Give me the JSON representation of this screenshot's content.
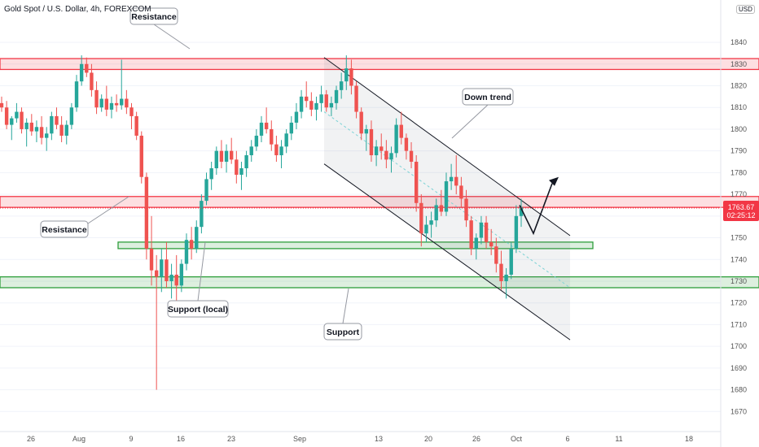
{
  "header": {
    "title": "Gold Spot / U.S. Dollar, 4h, FOREXCOM",
    "currency": "USD"
  },
  "price_tag": {
    "value": "1763.67",
    "countdown": "02:25:12",
    "color": "#f23645"
  },
  "annotations": [
    "Resistance",
    "Resistance",
    "Support (local)",
    "Support",
    "Down trend"
  ],
  "colors": {
    "up": "#26a69a",
    "down": "#ef5350",
    "resistance": "#f23645",
    "support": "#2e9e3b",
    "channel": "#131722"
  },
  "chart_data": {
    "type": "candlestick",
    "ylim": [
      1663,
      1852
    ],
    "y_ticks": [
      1840,
      1830,
      1820,
      1810,
      1800,
      1790,
      1780,
      1770,
      1760,
      1750,
      1740,
      1730,
      1720,
      1710,
      1700,
      1690,
      1680,
      1670
    ],
    "x_ticks": [
      "26",
      "Aug",
      "9",
      "16",
      "23",
      "Sep",
      "13",
      "20",
      "26",
      "Oct",
      "6",
      "11",
      "18"
    ],
    "zones": [
      {
        "kind": "resistance",
        "low": 1827.5,
        "high": 1832.5
      },
      {
        "kind": "resistance",
        "low": 1764,
        "high": 1769
      },
      {
        "kind": "support",
        "low": 1745,
        "high": 1748
      },
      {
        "kind": "support",
        "low": 1727,
        "high": 1732
      }
    ],
    "channel": {
      "upper": [
        [
          1833,
          1751
        ]
      ],
      "lower": [
        [
          1784,
          1703
        ]
      ],
      "mid": [
        [
          1808,
          1727
        ]
      ]
    },
    "projection": [
      1765,
      1752,
      1775
    ],
    "ohlc": [
      [
        1812,
        1815,
        1808,
        1810
      ],
      [
        1810,
        1813,
        1800,
        1802
      ],
      [
        1802,
        1806,
        1795,
        1805
      ],
      [
        1805,
        1812,
        1803,
        1808
      ],
      [
        1808,
        1810,
        1798,
        1800
      ],
      [
        1800,
        1805,
        1792,
        1803
      ],
      [
        1803,
        1807,
        1797,
        1799
      ],
      [
        1799,
        1804,
        1794,
        1801
      ],
      [
        1801,
        1806,
        1793,
        1796
      ],
      [
        1796,
        1801,
        1790,
        1798
      ],
      [
        1798,
        1808,
        1795,
        1806
      ],
      [
        1806,
        1810,
        1800,
        1802
      ],
      [
        1802,
        1806,
        1794,
        1797
      ],
      [
        1797,
        1804,
        1793,
        1802
      ],
      [
        1802,
        1812,
        1800,
        1810
      ],
      [
        1810,
        1825,
        1808,
        1822
      ],
      [
        1822,
        1834,
        1820,
        1830
      ],
      [
        1830,
        1833,
        1824,
        1826
      ],
      [
        1826,
        1830,
        1815,
        1818
      ],
      [
        1818,
        1822,
        1807,
        1810
      ],
      [
        1810,
        1816,
        1808,
        1814
      ],
      [
        1814,
        1820,
        1806,
        1809
      ],
      [
        1809,
        1815,
        1805,
        1812
      ],
      [
        1812,
        1816,
        1808,
        1811
      ],
      [
        1811,
        1832,
        1809,
        1814
      ],
      [
        1814,
        1818,
        1807,
        1810
      ],
      [
        1810,
        1812,
        1800,
        1806
      ],
      [
        1806,
        1808,
        1795,
        1797
      ],
      [
        1797,
        1799,
        1775,
        1778
      ],
      [
        1778,
        1780,
        1740,
        1745
      ],
      [
        1745,
        1760,
        1728,
        1735
      ],
      [
        1735,
        1742,
        1680,
        1732
      ],
      [
        1732,
        1745,
        1725,
        1740
      ],
      [
        1740,
        1748,
        1727,
        1730
      ],
      [
        1730,
        1738,
        1722,
        1733
      ],
      [
        1733,
        1742,
        1718,
        1728
      ],
      [
        1728,
        1740,
        1725,
        1738
      ],
      [
        1738,
        1752,
        1735,
        1749
      ],
      [
        1749,
        1755,
        1740,
        1745
      ],
      [
        1745,
        1758,
        1743,
        1755
      ],
      [
        1755,
        1770,
        1752,
        1767
      ],
      [
        1767,
        1780,
        1765,
        1777
      ],
      [
        1777,
        1785,
        1772,
        1782
      ],
      [
        1782,
        1792,
        1779,
        1790
      ],
      [
        1790,
        1795,
        1782,
        1785
      ],
      [
        1785,
        1793,
        1780,
        1790
      ],
      [
        1790,
        1796,
        1784,
        1786
      ],
      [
        1786,
        1790,
        1775,
        1779
      ],
      [
        1779,
        1785,
        1772,
        1782
      ],
      [
        1782,
        1790,
        1778,
        1788
      ],
      [
        1788,
        1795,
        1785,
        1792
      ],
      [
        1792,
        1800,
        1790,
        1797
      ],
      [
        1797,
        1806,
        1794,
        1803
      ],
      [
        1803,
        1810,
        1798,
        1800
      ],
      [
        1800,
        1804,
        1790,
        1793
      ],
      [
        1793,
        1797,
        1785,
        1788
      ],
      [
        1788,
        1795,
        1782,
        1792
      ],
      [
        1792,
        1800,
        1789,
        1798
      ],
      [
        1798,
        1806,
        1795,
        1803
      ],
      [
        1803,
        1812,
        1800,
        1808
      ],
      [
        1808,
        1818,
        1805,
        1815
      ],
      [
        1815,
        1822,
        1810,
        1813
      ],
      [
        1813,
        1817,
        1806,
        1809
      ],
      [
        1809,
        1815,
        1804,
        1812
      ],
      [
        1812,
        1820,
        1808,
        1816
      ],
      [
        1816,
        1818,
        1808,
        1810
      ],
      [
        1810,
        1815,
        1806,
        1812
      ],
      [
        1812,
        1820,
        1809,
        1818
      ],
      [
        1818,
        1826,
        1814,
        1822
      ],
      [
        1822,
        1834,
        1818,
        1828
      ],
      [
        1828,
        1832,
        1816,
        1820
      ],
      [
        1820,
        1822,
        1805,
        1808
      ],
      [
        1808,
        1810,
        1795,
        1798
      ],
      [
        1798,
        1802,
        1790,
        1800
      ],
      [
        1800,
        1804,
        1785,
        1788
      ],
      [
        1788,
        1795,
        1783,
        1792
      ],
      [
        1792,
        1798,
        1786,
        1790
      ],
      [
        1790,
        1795,
        1782,
        1786
      ],
      [
        1786,
        1792,
        1780,
        1789
      ],
      [
        1789,
        1805,
        1787,
        1802
      ],
      [
        1802,
        1808,
        1793,
        1796
      ],
      [
        1796,
        1798,
        1786,
        1790
      ],
      [
        1790,
        1794,
        1782,
        1785
      ],
      [
        1785,
        1788,
        1762,
        1766
      ],
      [
        1766,
        1770,
        1746,
        1752
      ],
      [
        1752,
        1760,
        1748,
        1756
      ],
      [
        1756,
        1762,
        1750,
        1758
      ],
      [
        1758,
        1768,
        1755,
        1765
      ],
      [
        1765,
        1772,
        1760,
        1762
      ],
      [
        1762,
        1780,
        1760,
        1776
      ],
      [
        1776,
        1784,
        1772,
        1778
      ],
      [
        1778,
        1788,
        1770,
        1774
      ],
      [
        1774,
        1778,
        1764,
        1768
      ],
      [
        1768,
        1772,
        1755,
        1758
      ],
      [
        1758,
        1760,
        1742,
        1745
      ],
      [
        1745,
        1752,
        1740,
        1750
      ],
      [
        1750,
        1760,
        1747,
        1757
      ],
      [
        1757,
        1760,
        1745,
        1748
      ],
      [
        1748,
        1754,
        1742,
        1746
      ],
      [
        1746,
        1750,
        1734,
        1738
      ],
      [
        1738,
        1744,
        1726,
        1730
      ],
      [
        1730,
        1736,
        1722,
        1733
      ],
      [
        1733,
        1748,
        1731,
        1745
      ],
      [
        1745,
        1765,
        1743,
        1760
      ],
      [
        1760,
        1768,
        1755,
        1764
      ]
    ]
  }
}
